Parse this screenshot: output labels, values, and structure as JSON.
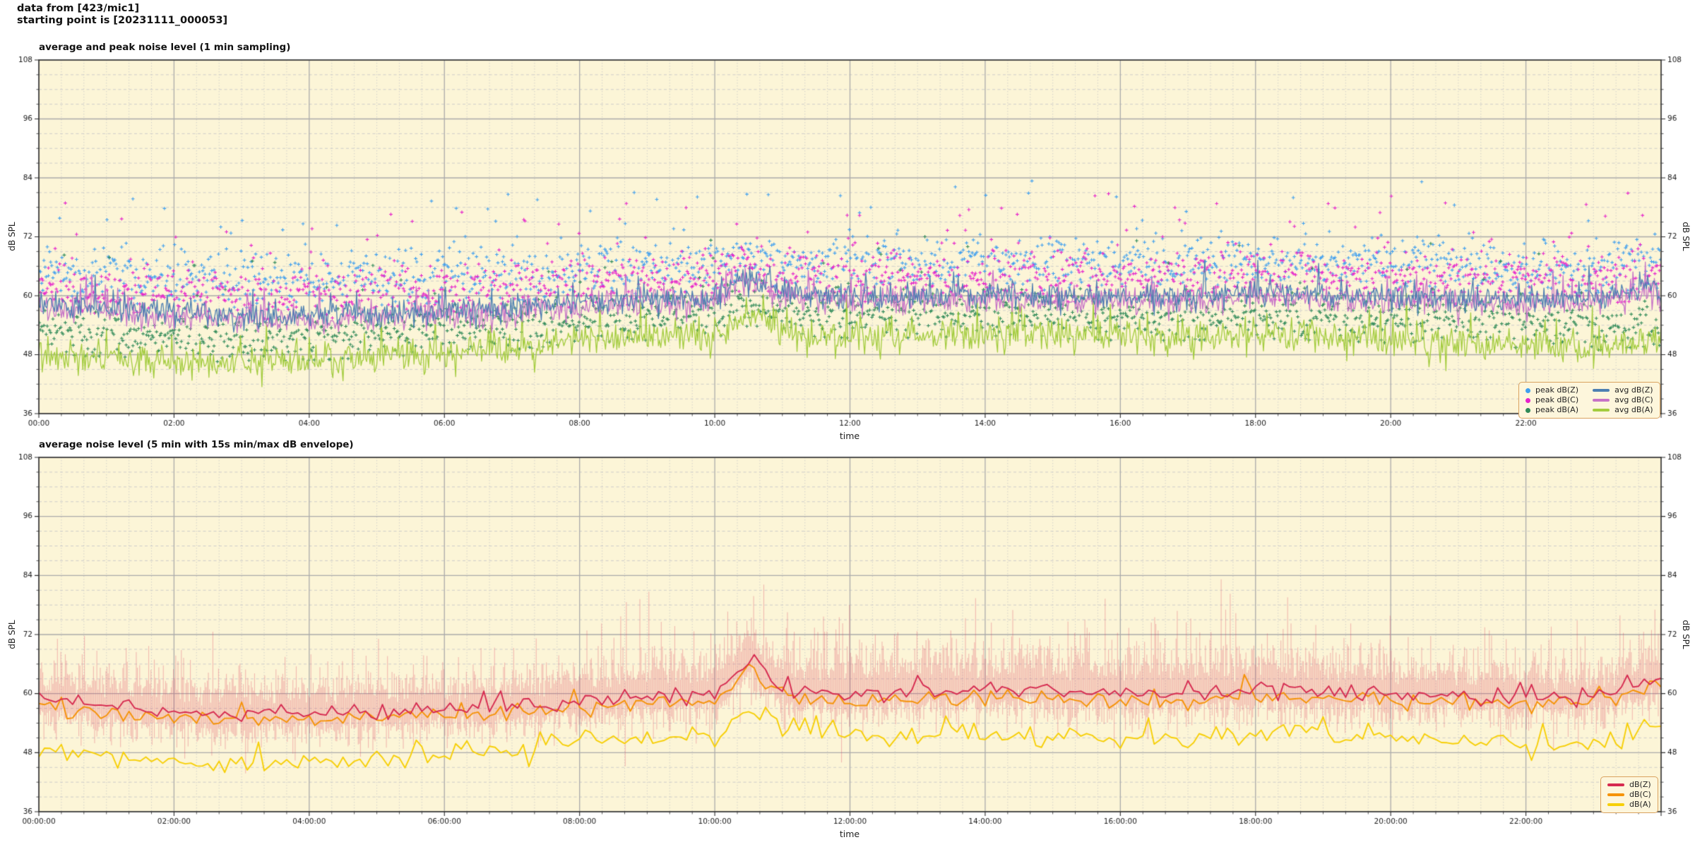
{
  "header": {
    "line1": "data from [423/mic1]",
    "line2": "starting point is [20231111_000053]"
  },
  "palette": {
    "figure_bg": "#ffffff",
    "axes_bg": "#fcf5d7",
    "grid_major": "#ababab",
    "grid_minor": "#c8c8c8",
    "spine": "#2b2b2b",
    "text": "#1a1a1a",
    "legend_bg": "#fdf6dc",
    "legend_border": "#d9a25f"
  },
  "chart_data": [
    {
      "type": "line+scatter",
      "title": "average and peak noise level (1 min sampling)",
      "xlabel": "time",
      "ylabel": "dB SPL",
      "ylabel_right": "dB SPL",
      "ylim": [
        36,
        108
      ],
      "yticks": [
        36,
        48,
        60,
        72,
        84,
        96,
        108
      ],
      "y_minor_step": 3,
      "x_hours_range": [
        0,
        24
      ],
      "xtick_hours": [
        0,
        2,
        4,
        6,
        8,
        10,
        12,
        14,
        16,
        18,
        20,
        22
      ],
      "xtick_labels": [
        "00:00",
        "02:00",
        "04:00",
        "06:00",
        "08:00",
        "10:00",
        "12:00",
        "14:00",
        "16:00",
        "18:00",
        "20:00",
        "22:00"
      ],
      "x_minor_minutes": 20,
      "sample_minutes": 1,
      "anchors_hours": [
        0,
        1,
        2,
        3,
        4,
        5,
        6,
        7,
        8,
        9,
        10,
        10.5,
        11,
        12,
        13,
        14,
        15,
        16,
        17,
        18,
        19,
        20,
        21,
        22,
        23,
        24
      ],
      "series": [
        {
          "name": "peak dB(Z)",
          "kind": "scatter",
          "color": "#3f9fef",
          "noise": 2.7,
          "outlier_p": 0.055,
          "outlier_max": 15,
          "values": [
            65,
            64,
            63.5,
            63,
            63,
            63.5,
            64,
            64.5,
            65,
            66,
            66.5,
            69,
            67,
            66.5,
            66.5,
            67,
            66.5,
            66.5,
            66.5,
            67,
            66.5,
            66.5,
            66,
            66,
            66,
            67
          ]
        },
        {
          "name": "peak dB(C)",
          "kind": "scatter",
          "color": "#e623cb",
          "noise": 2.6,
          "outlier_p": 0.05,
          "outlier_max": 15,
          "values": [
            62.5,
            61.5,
            61,
            60.5,
            60.5,
            61,
            61.5,
            62,
            63,
            63.5,
            64,
            66.5,
            64.5,
            64,
            64,
            64.5,
            64,
            64,
            64,
            64.5,
            64,
            64,
            63.5,
            63.5,
            63.5,
            64.5
          ]
        },
        {
          "name": "peak dB(A)",
          "kind": "scatter",
          "color": "#2f8a58",
          "noise": 2.3,
          "outlier_p": 0.05,
          "outlier_max": 14,
          "values": [
            53,
            52,
            51.5,
            51,
            51.5,
            52,
            52.5,
            53.5,
            55,
            55.5,
            56,
            58.5,
            56.5,
            56,
            56,
            56.5,
            56,
            55.5,
            55.5,
            56,
            55.5,
            55,
            54.5,
            54,
            53.5,
            54.5
          ]
        },
        {
          "name": "avg dB(Z)",
          "kind": "line",
          "color": "#4d7fb2",
          "width": 1.3,
          "noise": 1.3,
          "spike_p": 0.03,
          "spike_max": 4,
          "values": [
            58.5,
            57.5,
            56.5,
            56,
            56,
            56.5,
            57,
            57.5,
            58.5,
            59.5,
            60,
            64,
            60.5,
            60,
            60,
            60.5,
            60,
            60,
            60,
            60.5,
            60,
            60,
            59.5,
            59.5,
            59.5,
            61.5
          ]
        },
        {
          "name": "avg dB(C)",
          "kind": "line",
          "color": "#c773c7",
          "width": 1.3,
          "noise": 1.4,
          "spike_p": 0.04,
          "spike_max": 5,
          "values": [
            57.5,
            56.5,
            55.5,
            55,
            55,
            55.5,
            56,
            56.5,
            57.5,
            58.5,
            59,
            63.5,
            59.5,
            59,
            59,
            59.5,
            59,
            59,
            59,
            59.5,
            59,
            59,
            58.5,
            58.5,
            58.5,
            61
          ]
        },
        {
          "name": "avg dB(A)",
          "kind": "line",
          "color": "#a3cc3e",
          "width": 1.3,
          "noise": 1.7,
          "spike_p": 0.05,
          "spike_max": 6,
          "values": [
            48.5,
            47.5,
            46.5,
            46.5,
            47,
            47.5,
            48,
            49,
            51,
            51.5,
            52,
            55.5,
            52.5,
            52,
            52,
            52.5,
            52,
            51.5,
            51.5,
            52,
            51.5,
            51,
            50.5,
            50,
            49.5,
            51
          ]
        }
      ]
    },
    {
      "type": "line+envelope",
      "title": "average noise level (5 min with 15s min/max dB envelope)",
      "xlabel": "time",
      "ylabel": "dB SPL",
      "ylabel_right": "dB SPL",
      "ylim": [
        36,
        108
      ],
      "yticks": [
        36,
        48,
        60,
        72,
        84,
        96,
        108
      ],
      "y_minor_step": 3,
      "x_hours_range": [
        0,
        24
      ],
      "xtick_hours": [
        0,
        2,
        4,
        6,
        8,
        10,
        12,
        14,
        16,
        18,
        20,
        22
      ],
      "xtick_labels": [
        "00:00:00",
        "02:00:00",
        "04:00:00",
        "06:00:00",
        "08:00:00",
        "10:00:00",
        "12:00:00",
        "14:00:00",
        "16:00:00",
        "18:00:00",
        "20:00:00",
        "22:00:00"
      ],
      "x_minor_minutes": 20,
      "sample_minutes": 5,
      "anchors_hours": [
        0,
        1,
        2,
        3,
        4,
        5,
        6,
        7,
        8,
        9,
        10,
        10.5,
        11,
        12,
        13,
        14,
        15,
        16,
        17,
        18,
        19,
        20,
        21,
        22,
        23,
        24
      ],
      "envelope": {
        "name": "15s min/max dB envelope",
        "base": "dB(Z)",
        "color_rgb": [
          222,
          60,
          90
        ],
        "alpha": 0.32,
        "up_base": 2.2,
        "up_sigma": 3.4,
        "down_base": 1.8,
        "down_sigma": 2.6,
        "day_boost": 1.3,
        "day_hours": [
          8,
          20
        ]
      },
      "series": [
        {
          "name": "dB(Z)",
          "kind": "line",
          "color": "#d62a50",
          "width": 1.9,
          "noise": 0.8,
          "spike_p": 0.03,
          "spike_max": 2.5,
          "values": [
            59,
            57.5,
            56.5,
            56,
            56,
            56.5,
            57,
            57.5,
            58.5,
            59.5,
            60,
            67,
            60.5,
            60,
            60.5,
            61,
            60.5,
            60,
            60,
            61,
            60.5,
            60,
            60,
            59.5,
            59.5,
            63
          ]
        },
        {
          "name": "dB(C)",
          "kind": "line",
          "color": "#f59307",
          "width": 1.9,
          "noise": 0.8,
          "spike_p": 0.03,
          "spike_max": 2.5,
          "values": [
            57.5,
            56,
            55,
            54.5,
            54.5,
            55,
            55.5,
            56,
            57,
            58,
            58.5,
            65.5,
            59,
            58.5,
            59,
            59.5,
            59,
            58.5,
            58.5,
            59.5,
            59,
            58.5,
            58.5,
            58,
            58,
            62
          ]
        },
        {
          "name": "dB(A)",
          "kind": "line",
          "color": "#f7cf06",
          "width": 1.9,
          "noise": 1.1,
          "spike_p": 0.05,
          "spike_max": 3.5,
          "values": [
            48.5,
            47,
            46,
            45.5,
            46,
            46.5,
            47.5,
            48.5,
            50.5,
            51,
            51.5,
            56.5,
            52,
            51.5,
            51.5,
            52,
            51.5,
            51,
            51,
            52,
            51.5,
            51,
            50.5,
            50,
            49.5,
            53
          ]
        }
      ]
    }
  ]
}
